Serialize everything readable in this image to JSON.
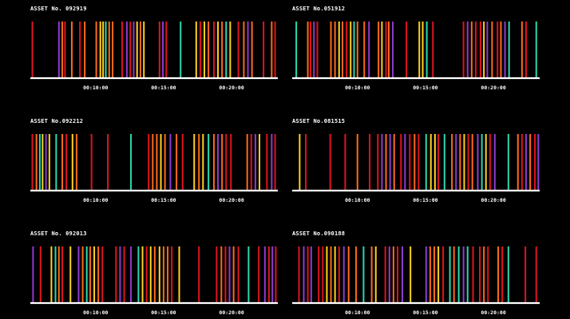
{
  "chart_data": [
    {
      "type": "bar",
      "title": "ASSET No. 092919",
      "tick_labels": [
        "00:10:00",
        "00:15:00",
        "00:20:00"
      ],
      "tick_times": [
        10,
        15,
        20
      ],
      "xlim": [
        5.2,
        23.4
      ],
      "events": [
        [
          5.35,
          "red"
        ],
        [
          7.3,
          "purple"
        ],
        [
          7.55,
          "orange"
        ],
        [
          7.75,
          "red"
        ],
        [
          8.25,
          "orange"
        ],
        [
          8.85,
          "red"
        ],
        [
          9.2,
          "orange"
        ],
        [
          10.05,
          "orange"
        ],
        [
          10.35,
          "yellow"
        ],
        [
          10.55,
          "yellow"
        ],
        [
          10.75,
          "teal"
        ],
        [
          11.0,
          "orange"
        ],
        [
          11.25,
          "orange"
        ],
        [
          11.95,
          "red"
        ],
        [
          12.3,
          "purple"
        ],
        [
          12.55,
          "red"
        ],
        [
          12.8,
          "purple"
        ],
        [
          13.05,
          "yellow"
        ],
        [
          13.3,
          "orange"
        ],
        [
          13.55,
          "yellow"
        ],
        [
          14.7,
          "red"
        ],
        [
          14.95,
          "purple"
        ],
        [
          15.2,
          "red"
        ],
        [
          16.25,
          "teal"
        ],
        [
          17.4,
          "yellow"
        ],
        [
          17.7,
          "red"
        ],
        [
          18.0,
          "yellow"
        ],
        [
          18.3,
          "orange"
        ],
        [
          18.7,
          "red"
        ],
        [
          19.0,
          "yellow"
        ],
        [
          19.3,
          "orange"
        ],
        [
          19.6,
          "teal"
        ],
        [
          19.9,
          "yellow"
        ],
        [
          20.5,
          "red"
        ],
        [
          20.9,
          "orange"
        ],
        [
          21.2,
          "purple"
        ],
        [
          21.5,
          "orange"
        ],
        [
          22.35,
          "red"
        ],
        [
          22.95,
          "orange"
        ],
        [
          23.2,
          "red"
        ]
      ]
    },
    {
      "type": "bar",
      "title": "ASSET No.051912",
      "tick_labels": [
        "00:10:00",
        "00:15:00",
        "00:20:00"
      ],
      "tick_times": [
        10,
        15,
        20
      ],
      "xlim": [
        5.2,
        23.4
      ],
      "events": [
        [
          5.5,
          "teal"
        ],
        [
          6.35,
          "orange"
        ],
        [
          6.55,
          "red"
        ],
        [
          6.8,
          "purple"
        ],
        [
          7.05,
          "red"
        ],
        [
          8.05,
          "orange"
        ],
        [
          8.35,
          "orange"
        ],
        [
          8.65,
          "yellow"
        ],
        [
          8.9,
          "orange"
        ],
        [
          9.2,
          "red"
        ],
        [
          9.5,
          "yellow"
        ],
        [
          9.75,
          "teal"
        ],
        [
          10.0,
          "orange"
        ],
        [
          10.5,
          "orange"
        ],
        [
          10.85,
          "purple"
        ],
        [
          11.55,
          "orange"
        ],
        [
          11.8,
          "yellow"
        ],
        [
          12.1,
          "red"
        ],
        [
          12.3,
          "orange"
        ],
        [
          12.6,
          "purple"
        ],
        [
          13.6,
          "red"
        ],
        [
          14.55,
          "yellow"
        ],
        [
          14.8,
          "yellow"
        ],
        [
          15.1,
          "teal"
        ],
        [
          15.55,
          "red"
        ],
        [
          17.8,
          "red"
        ],
        [
          18.1,
          "purple"
        ],
        [
          18.4,
          "orange"
        ],
        [
          18.7,
          "red"
        ],
        [
          19.05,
          "red"
        ],
        [
          19.3,
          "yellow"
        ],
        [
          19.55,
          "purple"
        ],
        [
          19.9,
          "orange"
        ],
        [
          20.3,
          "red"
        ],
        [
          20.55,
          "orange"
        ],
        [
          20.85,
          "purple"
        ],
        [
          21.15,
          "teal"
        ],
        [
          22.1,
          "orange"
        ],
        [
          22.4,
          "red"
        ],
        [
          23.15,
          "teal"
        ]
      ]
    },
    {
      "type": "bar",
      "title": "ASSET No.092212",
      "tick_labels": [
        "00:10:00",
        "00:15:00",
        "00:20:00"
      ],
      "tick_times": [
        10,
        15,
        20
      ],
      "xlim": [
        5.2,
        23.4
      ],
      "events": [
        [
          5.35,
          "red"
        ],
        [
          5.65,
          "orange"
        ],
        [
          5.9,
          "teal"
        ],
        [
          6.1,
          "yellow"
        ],
        [
          6.35,
          "purple"
        ],
        [
          6.6,
          "yellow"
        ],
        [
          7.1,
          "teal"
        ],
        [
          7.55,
          "orange"
        ],
        [
          7.85,
          "red"
        ],
        [
          8.3,
          "yellow"
        ],
        [
          8.6,
          "orange"
        ],
        [
          9.7,
          "red"
        ],
        [
          10.9,
          "red"
        ],
        [
          12.6,
          "teal"
        ],
        [
          13.9,
          "red"
        ],
        [
          14.2,
          "orange"
        ],
        [
          14.5,
          "orange"
        ],
        [
          14.8,
          "yellow"
        ],
        [
          15.1,
          "orange"
        ],
        [
          15.5,
          "purple"
        ],
        [
          15.95,
          "orange"
        ],
        [
          16.4,
          "red"
        ],
        [
          17.25,
          "yellow"
        ],
        [
          17.6,
          "orange"
        ],
        [
          17.9,
          "yellow"
        ],
        [
          18.3,
          "teal"
        ],
        [
          18.7,
          "orange"
        ],
        [
          19.0,
          "purple"
        ],
        [
          19.3,
          "orange"
        ],
        [
          19.6,
          "red"
        ],
        [
          19.95,
          "red"
        ],
        [
          21.15,
          "orange"
        ],
        [
          21.45,
          "red"
        ],
        [
          21.75,
          "purple"
        ],
        [
          22.05,
          "yellow"
        ],
        [
          22.6,
          "red"
        ],
        [
          22.95,
          "purple"
        ],
        [
          23.2,
          "red"
        ]
      ]
    },
    {
      "type": "bar",
      "title": "ASSET No.081515",
      "tick_labels": [
        "00:10:00",
        "00:15:00",
        "00:20:00"
      ],
      "tick_times": [
        10,
        15,
        20
      ],
      "xlim": [
        5.2,
        23.4
      ],
      "events": [
        [
          5.75,
          "yellow"
        ],
        [
          6.2,
          "red"
        ],
        [
          8.0,
          "red"
        ],
        [
          9.1,
          "red"
        ],
        [
          10.0,
          "orange"
        ],
        [
          10.9,
          "red"
        ],
        [
          11.5,
          "red"
        ],
        [
          11.8,
          "purple"
        ],
        [
          12.1,
          "orange"
        ],
        [
          12.4,
          "purple"
        ],
        [
          12.7,
          "orange"
        ],
        [
          13.2,
          "red"
        ],
        [
          13.5,
          "purple"
        ],
        [
          13.85,
          "red"
        ],
        [
          14.2,
          "orange"
        ],
        [
          14.5,
          "red"
        ],
        [
          15.05,
          "teal"
        ],
        [
          15.4,
          "yellow"
        ],
        [
          15.7,
          "yellow"
        ],
        [
          15.95,
          "red"
        ],
        [
          16.4,
          "teal"
        ],
        [
          16.95,
          "orange"
        ],
        [
          17.25,
          "purple"
        ],
        [
          17.55,
          "orange"
        ],
        [
          17.85,
          "yellow"
        ],
        [
          18.15,
          "red"
        ],
        [
          18.45,
          "orange"
        ],
        [
          18.85,
          "purple"
        ],
        [
          19.15,
          "teal"
        ],
        [
          19.45,
          "yellow"
        ],
        [
          19.75,
          "red"
        ],
        [
          20.1,
          "purple"
        ],
        [
          21.1,
          "teal"
        ],
        [
          21.8,
          "orange"
        ],
        [
          22.1,
          "red"
        ],
        [
          22.4,
          "purple"
        ],
        [
          22.7,
          "orange"
        ],
        [
          23.05,
          "red"
        ],
        [
          23.3,
          "purple"
        ]
      ]
    },
    {
      "type": "bar",
      "title": "ASSET No. 092013",
      "tick_labels": [
        "00:10:00",
        "00:15:00",
        "00:20:00"
      ],
      "tick_times": [
        10,
        15,
        20
      ],
      "xlim": [
        5.2,
        23.4
      ],
      "events": [
        [
          5.4,
          "purple"
        ],
        [
          5.95,
          "red"
        ],
        [
          6.75,
          "yellow"
        ],
        [
          7.05,
          "teal"
        ],
        [
          7.3,
          "orange"
        ],
        [
          7.55,
          "red"
        ],
        [
          8.15,
          "yellow"
        ],
        [
          8.75,
          "purple"
        ],
        [
          9.05,
          "orange"
        ],
        [
          9.35,
          "teal"
        ],
        [
          9.6,
          "orange"
        ],
        [
          9.9,
          "yellow"
        ],
        [
          10.2,
          "orange"
        ],
        [
          10.5,
          "red"
        ],
        [
          11.5,
          "red"
        ],
        [
          11.8,
          "purple"
        ],
        [
          12.1,
          "red"
        ],
        [
          12.6,
          "purple"
        ],
        [
          13.15,
          "teal"
        ],
        [
          13.45,
          "yellow"
        ],
        [
          13.75,
          "red"
        ],
        [
          14.05,
          "yellow"
        ],
        [
          14.35,
          "orange"
        ],
        [
          14.7,
          "yellow"
        ],
        [
          15.0,
          "orange"
        ],
        [
          15.3,
          "orange"
        ],
        [
          15.6,
          "red"
        ],
        [
          16.15,
          "yellow"
        ],
        [
          17.6,
          "red"
        ],
        [
          18.9,
          "red"
        ],
        [
          19.25,
          "orange"
        ],
        [
          19.55,
          "red"
        ],
        [
          19.85,
          "purple"
        ],
        [
          20.15,
          "orange"
        ],
        [
          20.5,
          "red"
        ],
        [
          21.25,
          "teal"
        ],
        [
          22.0,
          "red"
        ],
        [
          22.45,
          "purple"
        ],
        [
          22.75,
          "red"
        ],
        [
          23.0,
          "purple"
        ],
        [
          23.25,
          "red"
        ]
      ]
    },
    {
      "type": "bar",
      "title": "ASSET No.090188",
      "tick_labels": [
        "00:10:00",
        "00:15:00",
        "00:20:00"
      ],
      "tick_times": [
        10,
        15,
        20
      ],
      "xlim": [
        5.2,
        23.4
      ],
      "events": [
        [
          5.7,
          "red"
        ],
        [
          6.05,
          "purple"
        ],
        [
          6.35,
          "red"
        ],
        [
          6.6,
          "purple"
        ],
        [
          7.15,
          "red"
        ],
        [
          7.45,
          "red"
        ],
        [
          7.75,
          "yellow"
        ],
        [
          8.05,
          "orange"
        ],
        [
          8.35,
          "yellow"
        ],
        [
          8.65,
          "red"
        ],
        [
          9.0,
          "purple"
        ],
        [
          9.35,
          "orange"
        ],
        [
          9.9,
          "orange"
        ],
        [
          10.45,
          "teal"
        ],
        [
          11.05,
          "orange"
        ],
        [
          11.35,
          "yellow"
        ],
        [
          12.05,
          "red"
        ],
        [
          12.35,
          "purple"
        ],
        [
          12.65,
          "orange"
        ],
        [
          12.95,
          "red"
        ],
        [
          13.3,
          "purple"
        ],
        [
          13.9,
          "yellow"
        ],
        [
          15.05,
          "purple"
        ],
        [
          15.35,
          "orange"
        ],
        [
          15.65,
          "orange"
        ],
        [
          15.95,
          "yellow"
        ],
        [
          16.3,
          "red"
        ],
        [
          16.8,
          "teal"
        ],
        [
          17.1,
          "orange"
        ],
        [
          17.45,
          "teal"
        ],
        [
          17.8,
          "purple"
        ],
        [
          18.1,
          "teal"
        ],
        [
          18.5,
          "red"
        ],
        [
          19.0,
          "red"
        ],
        [
          19.3,
          "orange"
        ],
        [
          19.6,
          "red"
        ],
        [
          20.35,
          "orange"
        ],
        [
          20.65,
          "red"
        ],
        [
          21.1,
          "teal"
        ],
        [
          22.35,
          "red"
        ],
        [
          23.15,
          "red"
        ]
      ]
    }
  ],
  "colors": {
    "background": "#000000",
    "baseline": "#ffffff",
    "text": "#ffffff",
    "red": "#e0141e",
    "orange": "#ff6a1a",
    "yellow": "#ffd21f",
    "purple": "#8e3bd1",
    "teal": "#2ad8b0"
  }
}
